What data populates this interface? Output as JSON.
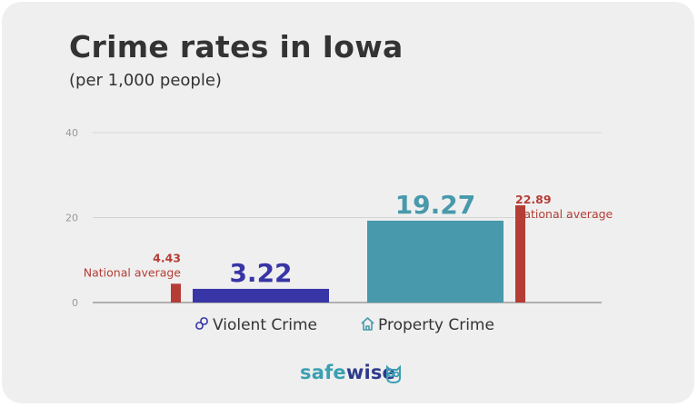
{
  "title": "Crime rates in Iowa",
  "subtitle": "(per 1,000 people)",
  "brand": {
    "part1": "safe",
    "part2": "wise"
  },
  "colors": {
    "violent": "#3835a6",
    "property": "#4799ab",
    "national": "#b53d35",
    "axis": "#999999",
    "grid": "#d4d4d4"
  },
  "chart_data": {
    "type": "bar",
    "title": "Crime rates in Iowa",
    "subtitle": "(per 1,000 people)",
    "ylim": [
      0,
      40
    ],
    "yticks": [
      0,
      20,
      40
    ],
    "grid": true,
    "categories": [
      "Violent Crime",
      "Property Crime"
    ],
    "category_icons": [
      "link-icon",
      "house-icon"
    ],
    "values": [
      3.22,
      19.27
    ],
    "value_labels": [
      "3.22",
      "19.27"
    ],
    "national_average": {
      "label": "National average",
      "values": [
        4.43,
        22.89
      ],
      "value_labels": [
        "4.43",
        "22.89"
      ]
    }
  }
}
